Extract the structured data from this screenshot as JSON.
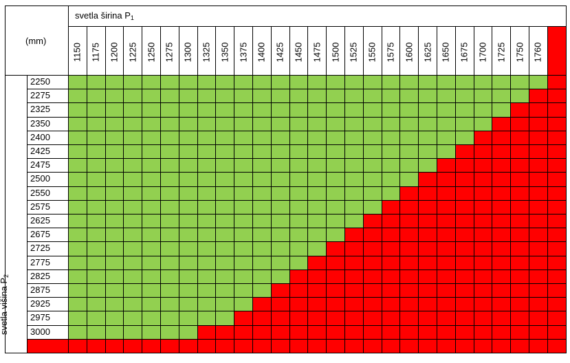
{
  "corner_label": "(mm)",
  "width_header": {
    "text": "svetla širina P",
    "sub": "1"
  },
  "height_header": {
    "text": "svetla višina  P",
    "sub": "2"
  },
  "columns": [
    "1150",
    "1175",
    "1200",
    "1225",
    "1250",
    "1275",
    "1300",
    "1325",
    "1350",
    "1375",
    "1400",
    "1425",
    "1450",
    "1475",
    "1500",
    "1525",
    "1550",
    "1575",
    "1600",
    "1625",
    "1650",
    "1675",
    "1700",
    "1725",
    "1750",
    "1760",
    ""
  ],
  "rows": [
    "2250",
    "2275",
    "2325",
    "2350",
    "2400",
    "2425",
    "2475",
    "2500",
    "2550",
    "2575",
    "2625",
    "2675",
    "2725",
    "2775",
    "2825",
    "2875",
    "2925",
    "2975",
    "3000",
    ""
  ],
  "green_counts": [
    26,
    25,
    24,
    23,
    22,
    21,
    20,
    19,
    18,
    17,
    16,
    15,
    14,
    13,
    12,
    11,
    10,
    9,
    7,
    0
  ],
  "colors": {
    "allowed": "#92d050",
    "not_allowed": "#ff0000",
    "grid": "#000000"
  }
}
